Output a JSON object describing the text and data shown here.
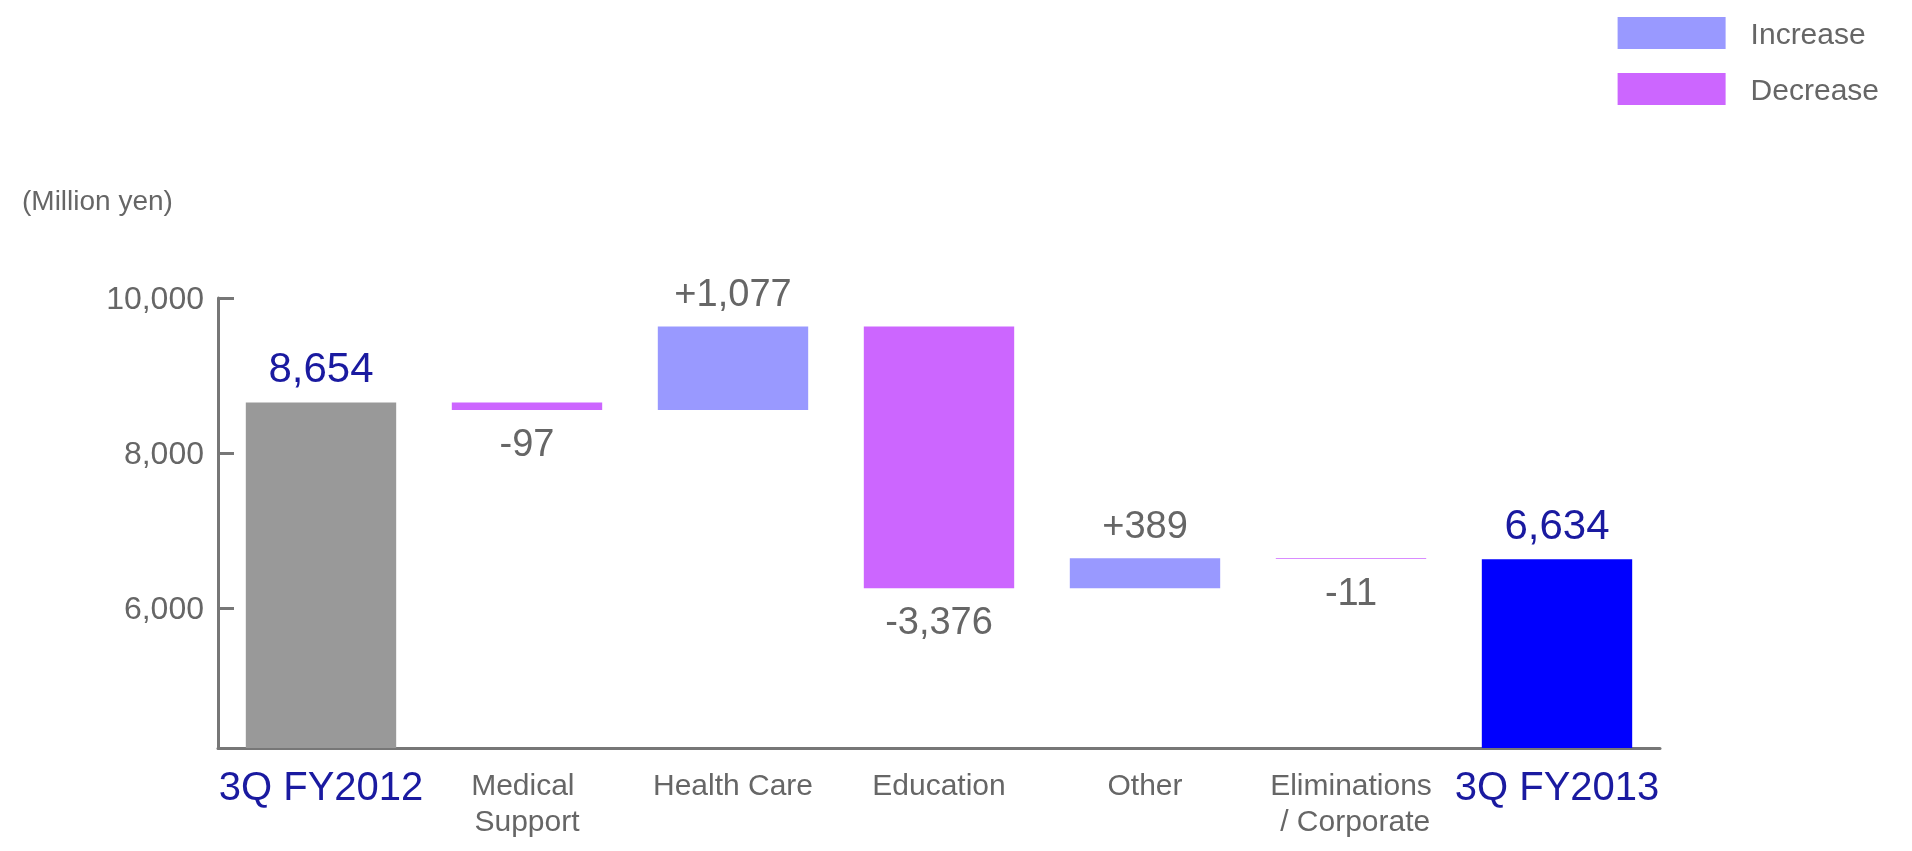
{
  "chart_data": {
    "type": "bar",
    "ylabel": "(Million yen)",
    "categories": [
      "3Q FY2012",
      "Medical Support",
      "Health Care",
      "Education",
      "Other",
      "Eliminations / Corporate",
      "3Q FY2013"
    ],
    "series": [
      {
        "color": "#999999",
        "values": [
          8654,
          null,
          null,
          null,
          null,
          null,
          null
        ],
        "value_labels": [
          "8,654",
          null,
          null,
          null,
          null,
          null,
          null
        ]
      },
      {
        "name": "Increase",
        "color": "#9999ff",
        "base": [
          null,
          null,
          8557,
          null,
          6258,
          null,
          null
        ],
        "values": [
          null,
          null,
          1077,
          null,
          389,
          null,
          null
        ],
        "value_labels": [
          null,
          null,
          "+1,077",
          null,
          "+389",
          null,
          null
        ]
      },
      {
        "name": "Decrease",
        "color": "#cc66ff",
        "base": [
          null,
          8654,
          null,
          9634,
          null,
          6647,
          null
        ],
        "values": [
          null,
          -97,
          null,
          -3376,
          null,
          -11,
          null
        ],
        "value_labels": [
          null,
          "-97",
          null,
          "-3,376",
          null,
          "-11",
          null
        ]
      },
      {
        "color": "#0000ff",
        "values": [
          null,
          null,
          null,
          null,
          null,
          null,
          6634
        ],
        "value_labels": [
          null,
          null,
          null,
          null,
          null,
          null,
          "6,634"
        ]
      }
    ],
    "ylim": [
      4200,
      10000
    ],
    "yticks": [
      {
        "value": 6000,
        "label": "6,000"
      },
      {
        "value": 8000,
        "label": "8,000"
      },
      {
        "value": 10000,
        "label": "10,000"
      }
    ],
    "grid": false,
    "legend": "top right"
  }
}
